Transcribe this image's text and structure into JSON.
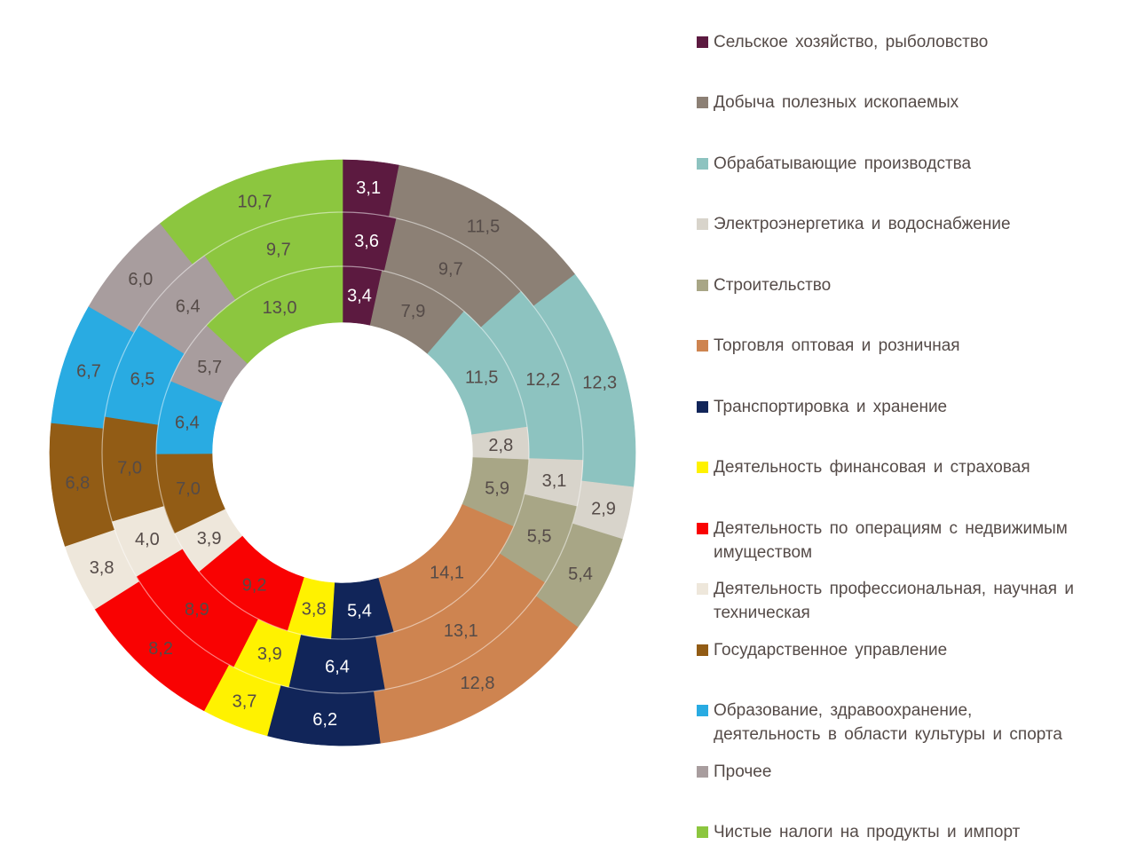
{
  "page": {
    "background": "#ffffff",
    "text_color": "#554b48"
  },
  "chart_data": {
    "type": "pie",
    "subtype": "multi-ring-donut",
    "rings_count": 3,
    "direction": "clockwise",
    "start_angle_deg": 0,
    "value_format": "comma-decimal",
    "unit": "%",
    "legend_position": "right",
    "grid": false,
    "categories": [
      {
        "label": "Сельское хозяйство, рыболовство",
        "color": "#5C1A40",
        "label_color": "#ffffff"
      },
      {
        "label": "Добыча полезных ископаемых",
        "color": "#8C8075",
        "label_color": "#554b48"
      },
      {
        "label": "Обрабатывающие производства",
        "color": "#8DC3C0",
        "label_color": "#554b48"
      },
      {
        "label": "Электроэнергетика и водоснабжение",
        "color": "#D8D4CB",
        "label_color": "#554b48"
      },
      {
        "label": "Строительство",
        "color": "#A8A686",
        "label_color": "#554b48"
      },
      {
        "label": "Торговля оптовая и розничная",
        "color": "#CE8450",
        "label_color": "#554b48"
      },
      {
        "label": "Транспортировка и хранение",
        "color": "#112559",
        "label_color": "#ffffff"
      },
      {
        "label": "Деятельность финансовая и страховая",
        "color": "#FFF200",
        "label_color": "#554b48"
      },
      {
        "label": "Деятельность по операциям с недвижимым\nимуществом",
        "color": "#F90202",
        "label_color": "#554b48"
      },
      {
        "label": "Деятельность профессиональная, научная и\nтехническая",
        "color": "#EEE7DB",
        "label_color": "#554b48"
      },
      {
        "label": "Государственное управление",
        "color": "#925C15",
        "label_color": "#554b48"
      },
      {
        "label": "Образование, здравоохранение,\nдеятельность в области культуры и спорта",
        "color": "#29ABE2",
        "label_color": "#554b48"
      },
      {
        "label": "Прочее",
        "color": "#A89D9E",
        "label_color": "#554b48"
      },
      {
        "label": "Чистые налоги на продукты и импорт",
        "color": "#8CC63F",
        "label_color": "#554b48"
      }
    ],
    "series": [
      {
        "name": "outer-ring",
        "values": [
          3.1,
          11.5,
          12.3,
          2.9,
          5.4,
          12.8,
          6.2,
          3.7,
          8.2,
          3.8,
          6.8,
          6.7,
          6.0,
          10.7
        ]
      },
      {
        "name": "middle-ring",
        "values": [
          3.6,
          9.7,
          12.2,
          3.1,
          5.5,
          13.1,
          6.4,
          3.9,
          8.9,
          4.0,
          7.0,
          6.5,
          6.4,
          9.7
        ]
      },
      {
        "name": "inner-ring",
        "values": [
          3.4,
          7.9,
          11.5,
          2.8,
          5.9,
          14.1,
          5.4,
          3.8,
          9.2,
          3.9,
          7.0,
          6.4,
          5.7,
          13.0
        ]
      }
    ],
    "ring_separator_color": "rgba(255,255,255,0.5)"
  }
}
